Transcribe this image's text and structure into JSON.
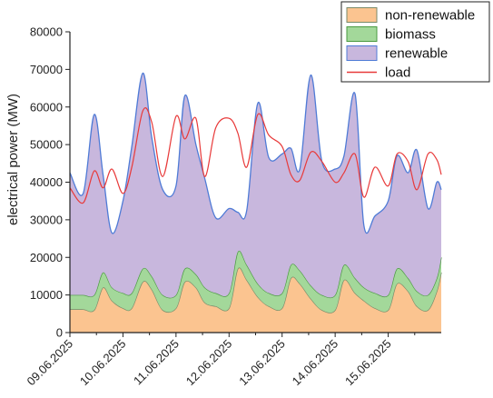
{
  "chart_data": {
    "type": "area",
    "title": "",
    "xlabel": "",
    "ylabel": "electrical power (MW)",
    "ylim": [
      0,
      80000
    ],
    "yticks": [
      "0",
      "10000",
      "20000",
      "30000",
      "40000",
      "50000",
      "60000",
      "70000",
      "80000"
    ],
    "xticks": [
      "09.06.2025",
      "10.06.2025",
      "11.06.2025",
      "12.06.2025",
      "13.06.2025",
      "14.06.2025",
      "15.06.2025"
    ],
    "x_unit": "hours since 09.06.2025 00:00",
    "xlim": [
      0,
      168
    ],
    "stacked": true,
    "legend_position": "top-right",
    "grid": false,
    "x": [
      0,
      6,
      11,
      15,
      19,
      24,
      28,
      33,
      37,
      42,
      48,
      52,
      57,
      61,
      66,
      72,
      76,
      80,
      85,
      90,
      96,
      100,
      104,
      109,
      114,
      120,
      124,
      129,
      133,
      138,
      144,
      148,
      153,
      157,
      162,
      166,
      168
    ],
    "series": [
      {
        "name": "non-renewable",
        "kind": "area",
        "color": "#fbc490",
        "edge_color": "#7a8a6a",
        "values": [
          6200,
          6200,
          6000,
          12000,
          8500,
          6500,
          6500,
          13500,
          11500,
          6000,
          6500,
          13500,
          12000,
          8000,
          7000,
          6500,
          17000,
          14000,
          9500,
          7000,
          6500,
          14500,
          13000,
          9000,
          6000,
          6000,
          14000,
          10500,
          8500,
          6500,
          6000,
          13000,
          11000,
          7000,
          6000,
          11000,
          16000
        ]
      },
      {
        "name": "biomass",
        "kind": "area",
        "color": "#a3d89a",
        "edge_color": "#4a9a40",
        "values": [
          3800,
          3800,
          4000,
          4000,
          3500,
          4000,
          4000,
          3500,
          3500,
          4000,
          3500,
          3500,
          3500,
          4000,
          3500,
          4000,
          4500,
          4000,
          3500,
          3500,
          4000,
          3500,
          3500,
          3500,
          4000,
          4000,
          4000,
          4000,
          3500,
          4000,
          4000,
          4000,
          3500,
          4000,
          4000,
          3500,
          4000
        ]
      },
      {
        "name": "renewable",
        "kind": "area",
        "color": "#c8b7dd",
        "edge_color": "#4f7bd6",
        "values": [
          32500,
          27000,
          48000,
          26000,
          14500,
          24500,
          39000,
          52000,
          37000,
          28000,
          29000,
          46000,
          34500,
          29000,
          20000,
          22500,
          10500,
          14500,
          48000,
          36000,
          37000,
          31000,
          27000,
          56000,
          35500,
          33500,
          29000,
          49000,
          16500,
          20500,
          25000,
          30000,
          28000,
          37500,
          23000,
          25500,
          18000
        ]
      },
      {
        "name": "load",
        "kind": "line",
        "color": "#e83a3a",
        "values": [
          38500,
          34500,
          43000,
          38500,
          43500,
          37000,
          44000,
          59000,
          56000,
          41500,
          57500,
          51500,
          57000,
          41500,
          54500,
          57000,
          53000,
          44000,
          58000,
          52500,
          49500,
          42000,
          40500,
          48000,
          45500,
          40000,
          42500,
          47500,
          36000,
          44000,
          39000,
          47500,
          45500,
          38000,
          47500,
          46000,
          42000
        ]
      }
    ]
  }
}
